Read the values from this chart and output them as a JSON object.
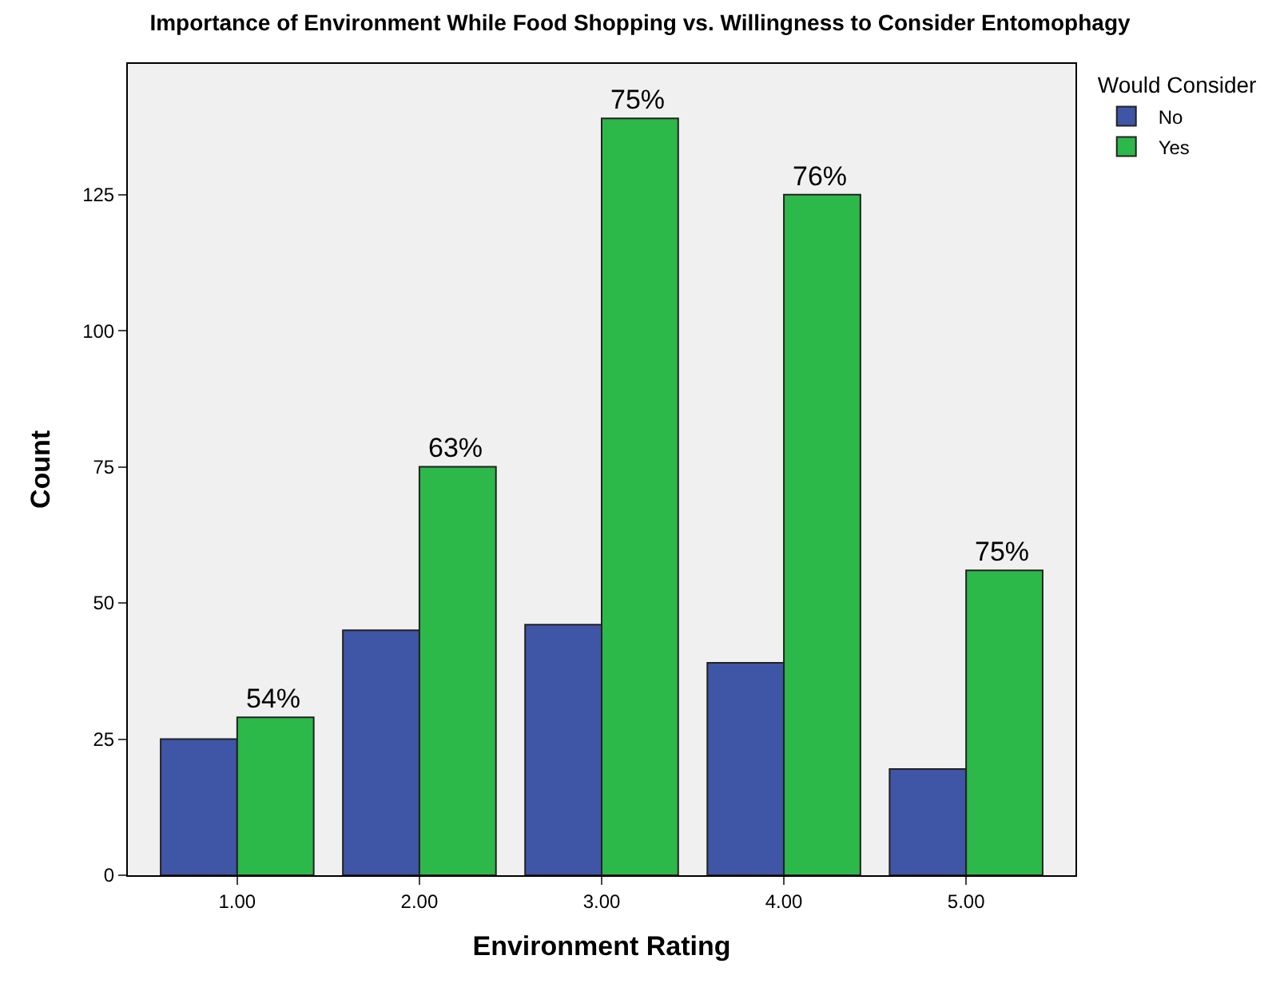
{
  "chart_data": {
    "type": "bar",
    "title": "Importance of Environment While Food Shopping vs. Willingness to Consider Entomophagy",
    "xlabel": "Environment Rating",
    "ylabel": "Count",
    "legend_title": "Would Consider",
    "categories": [
      "1.00",
      "2.00",
      "3.00",
      "4.00",
      "5.00"
    ],
    "series": [
      {
        "name": "No",
        "color": "#3f55a5",
        "values": [
          25,
          45,
          46,
          39,
          19.5
        ]
      },
      {
        "name": "Yes",
        "color": "#2db84a",
        "values": [
          29,
          75,
          139,
          125,
          56
        ]
      }
    ],
    "annotations": [
      {
        "text": "54%",
        "x": "1.00",
        "y": 29
      },
      {
        "text": "63%",
        "x": "2.00",
        "y": 75
      },
      {
        "text": "75%",
        "x": "3.00",
        "y": 139
      },
      {
        "text": "76%",
        "x": "4.00",
        "y": 125
      },
      {
        "text": "75%",
        "x": "5.00",
        "y": 56
      }
    ],
    "ylim": [
      0,
      149
    ],
    "yticks": [
      0,
      25,
      50,
      75,
      100,
      125
    ],
    "grid": false,
    "legend": "top right"
  }
}
